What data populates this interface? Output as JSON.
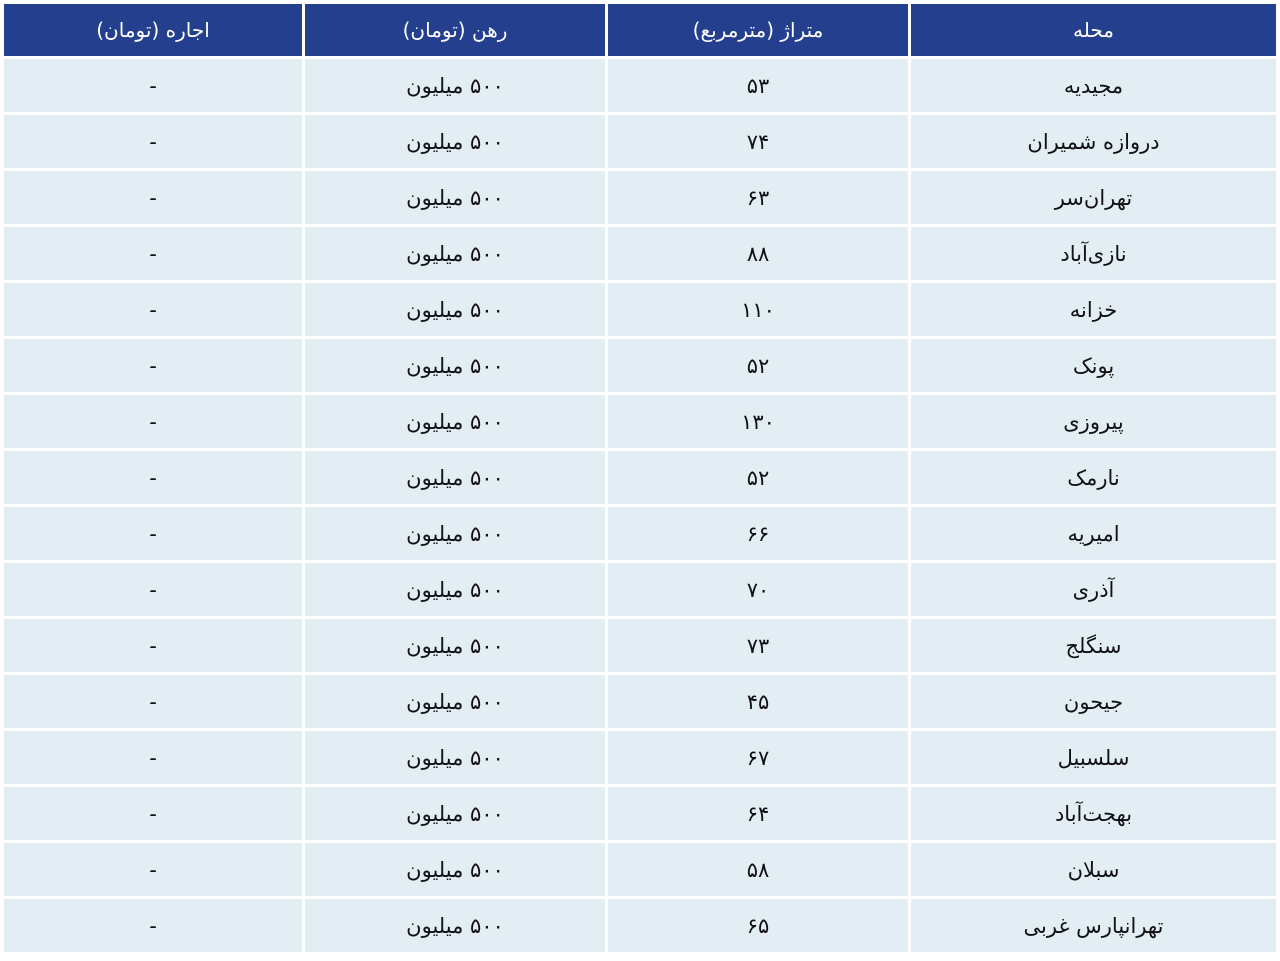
{
  "table": {
    "header": [
      "محله",
      "متراژ (مترمربع)",
      "رهن (تومان)",
      "اجاره (تومان)"
    ],
    "rows": [
      [
        "مجیدیه",
        "۵۳",
        "۵۰۰ میلیون",
        "-"
      ],
      [
        "دروازه شمیران",
        "۷۴",
        "۵۰۰ میلیون",
        "-"
      ],
      [
        "تهران‌سر",
        "۶۳",
        "۵۰۰ میلیون",
        "-"
      ],
      [
        "نازی‌آباد",
        "۸۸",
        "۵۰۰ میلیون",
        "-"
      ],
      [
        "خزانه",
        "۱۱۰",
        "۵۰۰ میلیون",
        "-"
      ],
      [
        "پونک",
        "۵۲",
        "۵۰۰ میلیون",
        "-"
      ],
      [
        "پیروزی",
        "۱۳۰",
        "۵۰۰ میلیون",
        "-"
      ],
      [
        "نارمک",
        "۵۲",
        "۵۰۰ میلیون",
        "-"
      ],
      [
        "امیریه",
        "۶۶",
        "۵۰۰ میلیون",
        "-"
      ],
      [
        "آذری",
        "۷۰",
        "۵۰۰ میلیون",
        "-"
      ],
      [
        "سنگلج",
        "۷۳",
        "۵۰۰ میلیون",
        "-"
      ],
      [
        "جیحون",
        "۴۵",
        "۵۰۰ میلیون",
        "-"
      ],
      [
        "سلسبیل",
        "۶۷",
        "۵۰۰ میلیون",
        "-"
      ],
      [
        "بهجت‌آباد",
        "۶۴",
        "۵۰۰ میلیون",
        "-"
      ],
      [
        "سبلان",
        "۵۸",
        "۵۰۰ میلیون",
        "-"
      ],
      [
        "تهرانپارس غربی",
        "۶۵",
        "۵۰۰ میلیون",
        "-"
      ]
    ]
  }
}
